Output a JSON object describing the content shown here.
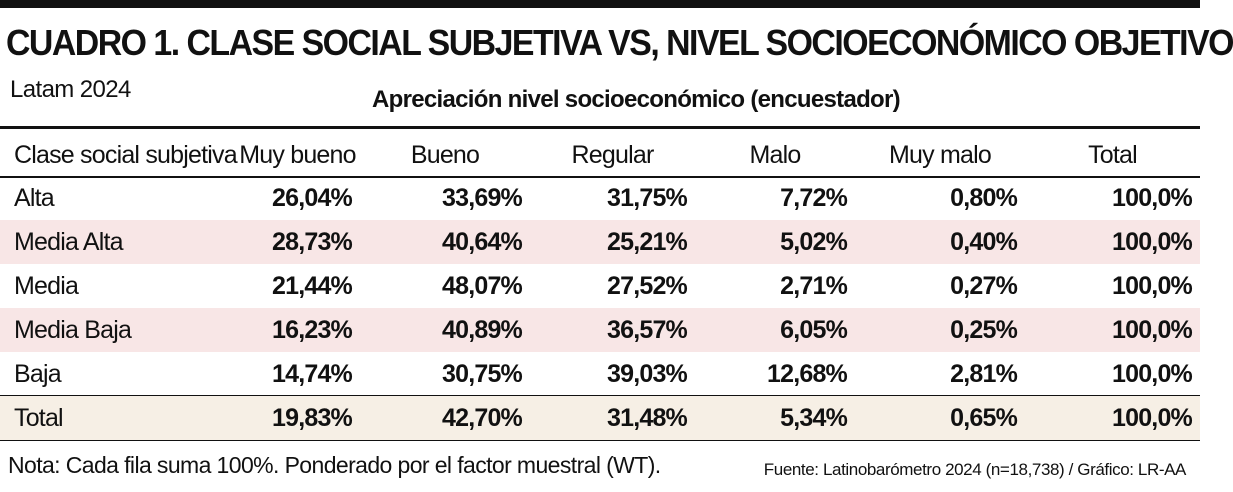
{
  "header": {
    "title": "CUADRO 1. CLASE SOCIAL SUBJETIVA VS, NIVEL SOCIOECONÓMICO OBJETIVO",
    "subtitle": "Latam 2024",
    "group_label": "Apreciación nivel socioeconómico (encuestador)"
  },
  "chart_data": {
    "type": "table",
    "title": "CUADRO 1. CLASE SOCIAL SUBJETIVA VS, NIVEL SOCIOECONÓMICO OBJETIVO",
    "columns": [
      "Clase social subjetiva",
      "Muy bueno",
      "Bueno",
      "Regular",
      "Malo",
      "Muy malo",
      "Total"
    ],
    "rows": [
      {
        "label": "Alta",
        "cells": [
          "26,04%",
          "33,69%",
          "31,75%",
          "7,72%",
          "0,80%",
          "100,0%"
        ]
      },
      {
        "label": "Media Alta",
        "cells": [
          "28,73%",
          "40,64%",
          "25,21%",
          "5,02%",
          "0,40%",
          "100,0%"
        ]
      },
      {
        "label": "Media",
        "cells": [
          "21,44%",
          "48,07%",
          "27,52%",
          "2,71%",
          "0,27%",
          "100,0%"
        ]
      },
      {
        "label": "Media Baja",
        "cells": [
          "16,23%",
          "40,89%",
          "36,57%",
          "6,05%",
          "0,25%",
          "100,0%"
        ]
      },
      {
        "label": "Baja",
        "cells": [
          "14,74%",
          "30,75%",
          "39,03%",
          "12,68%",
          "2,81%",
          "100,0%"
        ]
      }
    ],
    "total_row": {
      "label": "Total",
      "cells": [
        "19,83%",
        "42,70%",
        "31,48%",
        "5,34%",
        "0,65%",
        "100,0%"
      ]
    }
  },
  "colors": {
    "rule": "#111111",
    "row_shade": "#f8e6e6",
    "total_shade": "#f6efe5"
  },
  "footer": {
    "note": "Nota: Cada fila suma 100%. Ponderado por el factor muestral (WT).",
    "source": "Fuente: Latinobarómetro 2024 (n=18,738) / Gráfico: LR-AA"
  }
}
